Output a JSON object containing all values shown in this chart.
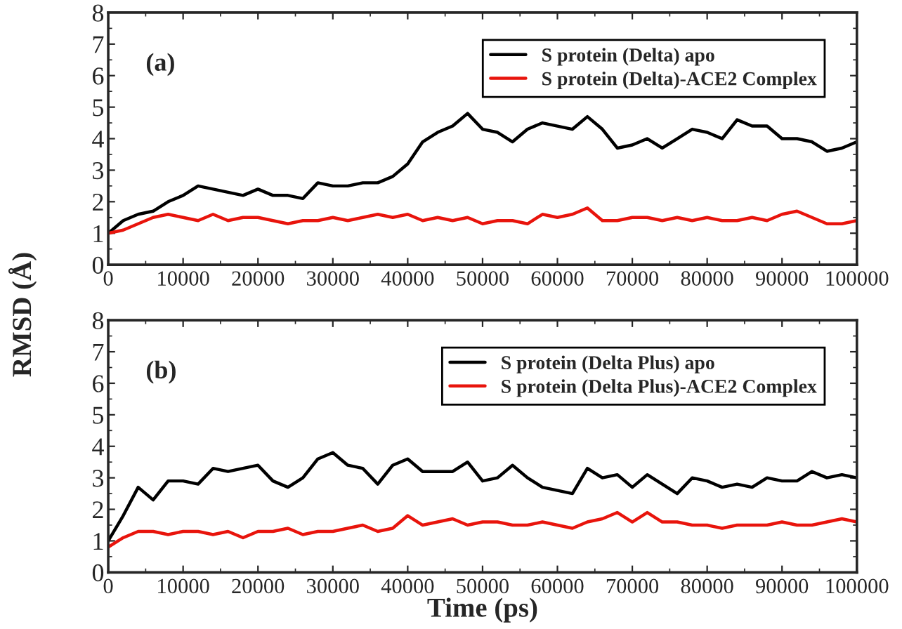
{
  "chart_data": [
    {
      "type": "line",
      "ylabel": "RMSD (Å)",
      "annotations": [
        "(a)"
      ],
      "x": [
        0,
        2000,
        4000,
        6000,
        8000,
        10000,
        12000,
        14000,
        16000,
        18000,
        20000,
        22000,
        24000,
        26000,
        28000,
        30000,
        32000,
        34000,
        36000,
        38000,
        40000,
        42000,
        44000,
        46000,
        48000,
        50000,
        52000,
        54000,
        56000,
        58000,
        60000,
        62000,
        64000,
        66000,
        68000,
        70000,
        72000,
        74000,
        76000,
        78000,
        80000,
        82000,
        84000,
        86000,
        88000,
        90000,
        92000,
        94000,
        96000,
        98000,
        100000
      ],
      "series": [
        {
          "name": "S protein (Delta) apo",
          "color": "#000000",
          "values": [
            1.0,
            1.4,
            1.6,
            1.7,
            2.0,
            2.2,
            2.5,
            2.4,
            2.3,
            2.2,
            2.4,
            2.2,
            2.2,
            2.1,
            2.6,
            2.5,
            2.5,
            2.6,
            2.6,
            2.8,
            3.2,
            3.9,
            4.2,
            4.4,
            4.8,
            4.3,
            4.2,
            3.9,
            4.3,
            4.5,
            4.4,
            4.3,
            4.7,
            4.3,
            3.7,
            3.8,
            4.0,
            3.7,
            4.0,
            4.3,
            4.2,
            4.0,
            4.6,
            4.4,
            4.4,
            4.0,
            4.0,
            3.9,
            3.6,
            3.7,
            3.9
          ]
        },
        {
          "name": "S protein (Delta)-ACE2 Complex",
          "color": "#e8140c",
          "values": [
            1.0,
            1.1,
            1.3,
            1.5,
            1.6,
            1.5,
            1.4,
            1.6,
            1.4,
            1.5,
            1.5,
            1.4,
            1.3,
            1.4,
            1.4,
            1.5,
            1.4,
            1.5,
            1.6,
            1.5,
            1.6,
            1.4,
            1.5,
            1.4,
            1.5,
            1.3,
            1.4,
            1.4,
            1.3,
            1.6,
            1.5,
            1.6,
            1.8,
            1.4,
            1.4,
            1.5,
            1.5,
            1.4,
            1.5,
            1.4,
            1.5,
            1.4,
            1.4,
            1.5,
            1.4,
            1.6,
            1.7,
            1.5,
            1.3,
            1.3,
            1.4
          ]
        }
      ],
      "xlim": [
        0,
        100000
      ],
      "xticks": [
        0,
        10000,
        20000,
        30000,
        40000,
        50000,
        60000,
        70000,
        80000,
        90000,
        100000
      ],
      "ylim": [
        0,
        8
      ],
      "yticks": [
        0,
        1,
        2,
        3,
        4,
        5,
        6,
        7,
        8
      ],
      "grid": false,
      "legend": "top right",
      "marker": "none",
      "line_style": "solid"
    },
    {
      "type": "line",
      "xlabel": "Time (ps)",
      "annotations": [
        "(b)"
      ],
      "x": [
        0,
        2000,
        4000,
        6000,
        8000,
        10000,
        12000,
        14000,
        16000,
        18000,
        20000,
        22000,
        24000,
        26000,
        28000,
        30000,
        32000,
        34000,
        36000,
        38000,
        40000,
        42000,
        44000,
        46000,
        48000,
        50000,
        52000,
        54000,
        56000,
        58000,
        60000,
        62000,
        64000,
        66000,
        68000,
        70000,
        72000,
        74000,
        76000,
        78000,
        80000,
        82000,
        84000,
        86000,
        88000,
        90000,
        92000,
        94000,
        96000,
        98000,
        100000
      ],
      "series": [
        {
          "name": "S protein (Delta Plus) apo",
          "color": "#000000",
          "values": [
            1.0,
            1.8,
            2.7,
            2.3,
            2.9,
            2.9,
            2.8,
            3.3,
            3.2,
            3.3,
            3.4,
            2.9,
            2.7,
            3.0,
            3.6,
            3.8,
            3.4,
            3.3,
            2.8,
            3.4,
            3.6,
            3.2,
            3.2,
            3.2,
            3.5,
            2.9,
            3.0,
            3.4,
            3.0,
            2.7,
            2.6,
            2.5,
            3.3,
            3.0,
            3.1,
            2.7,
            3.1,
            2.8,
            2.5,
            3.0,
            2.9,
            2.7,
            2.8,
            2.7,
            3.0,
            2.9,
            2.9,
            3.2,
            3.0,
            3.1,
            3.0
          ]
        },
        {
          "name": "S protein (Delta Plus)-ACE2 Complex",
          "color": "#e8140c",
          "values": [
            0.8,
            1.1,
            1.3,
            1.3,
            1.2,
            1.3,
            1.3,
            1.2,
            1.3,
            1.1,
            1.3,
            1.3,
            1.4,
            1.2,
            1.3,
            1.3,
            1.4,
            1.5,
            1.3,
            1.4,
            1.8,
            1.5,
            1.6,
            1.7,
            1.5,
            1.6,
            1.6,
            1.5,
            1.5,
            1.6,
            1.5,
            1.4,
            1.6,
            1.7,
            1.9,
            1.6,
            1.9,
            1.6,
            1.6,
            1.5,
            1.5,
            1.4,
            1.5,
            1.5,
            1.5,
            1.6,
            1.5,
            1.5,
            1.6,
            1.7,
            1.6
          ]
        }
      ],
      "xlim": [
        0,
        100000
      ],
      "xticks": [
        0,
        10000,
        20000,
        30000,
        40000,
        50000,
        60000,
        70000,
        80000,
        90000,
        100000
      ],
      "ylim": [
        0,
        8
      ],
      "yticks": [
        0,
        1,
        2,
        3,
        4,
        5,
        6,
        7,
        8
      ],
      "grid": false,
      "legend": "top right",
      "marker": "none",
      "line_style": "solid"
    }
  ]
}
